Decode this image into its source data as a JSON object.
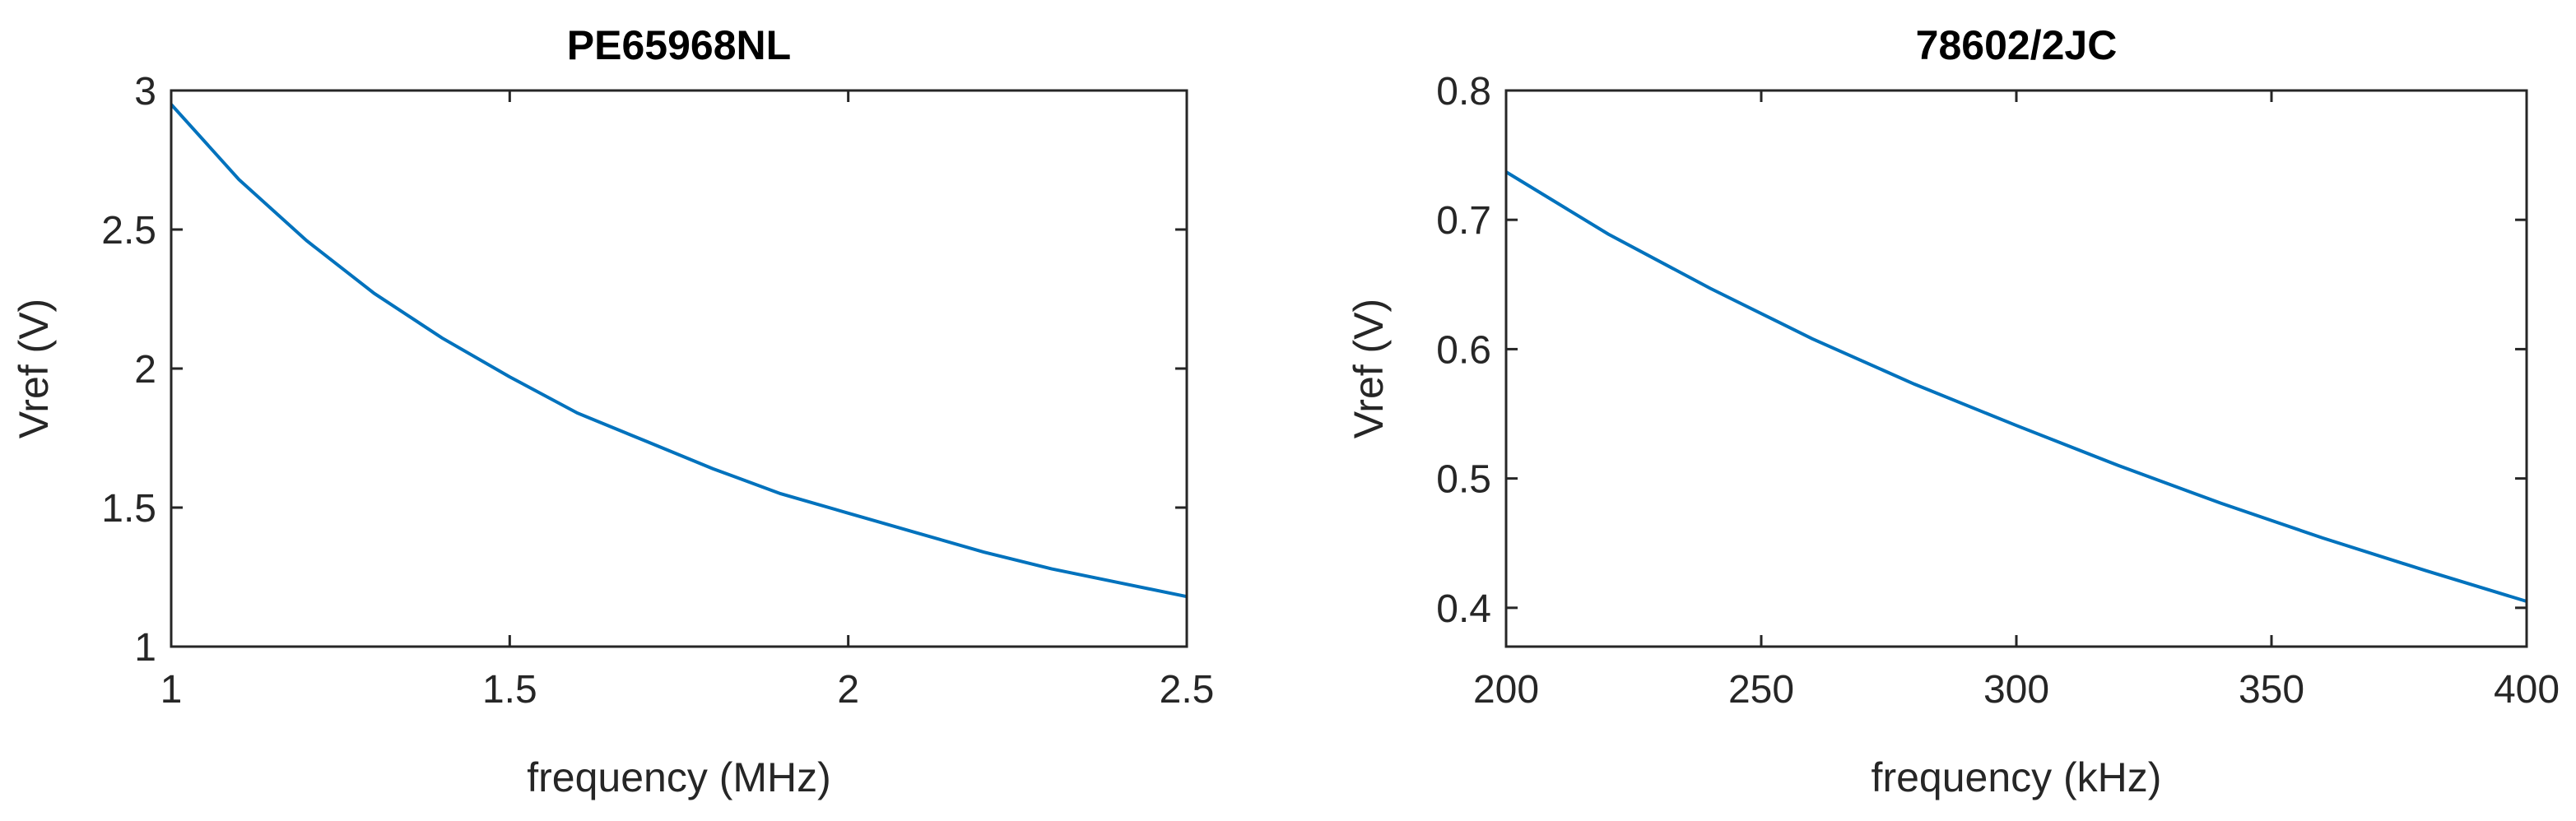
{
  "chart_data": [
    {
      "type": "line",
      "title": "PE65968NL",
      "xlabel": "frequency (MHz)",
      "ylabel": "Vref (V)",
      "xlim": [
        1,
        2.5
      ],
      "ylim": [
        1,
        3
      ],
      "xticks": [
        1,
        1.5,
        2,
        2.5
      ],
      "yticks": [
        1,
        1.5,
        2,
        2.5,
        3
      ],
      "xtick_labels": [
        "1",
        "1.5",
        "2",
        "2.5"
      ],
      "ytick_labels": [
        "1",
        "1.5",
        "2",
        "2.5",
        "3"
      ],
      "grid": false,
      "series": [
        {
          "color": "#0072BD",
          "x": [
            1.0,
            1.1,
            1.2,
            1.3,
            1.4,
            1.5,
            1.6,
            1.7,
            1.8,
            1.9,
            2.0,
            2.1,
            2.2,
            2.3,
            2.4,
            2.5
          ],
          "y": [
            2.95,
            2.68,
            2.46,
            2.27,
            2.11,
            1.97,
            1.84,
            1.74,
            1.64,
            1.55,
            1.48,
            1.41,
            1.34,
            1.28,
            1.23,
            1.18
          ]
        }
      ]
    },
    {
      "type": "line",
      "title": "78602/2JC",
      "xlabel": "frequency (kHz)",
      "ylabel": "Vref (V)",
      "xlim": [
        200,
        400
      ],
      "ylim": [
        0.37,
        0.8
      ],
      "xticks": [
        200,
        250,
        300,
        350,
        400
      ],
      "yticks": [
        0.4,
        0.5,
        0.6,
        0.7,
        0.8
      ],
      "xtick_labels": [
        "200",
        "250",
        "300",
        "350",
        "400"
      ],
      "ytick_labels": [
        "0.4",
        "0.5",
        "0.6",
        "0.7",
        "0.8"
      ],
      "grid": false,
      "series": [
        {
          "color": "#0072BD",
          "x": [
            200,
            220,
            240,
            260,
            280,
            300,
            320,
            340,
            360,
            380,
            400
          ],
          "y": [
            0.737,
            0.689,
            0.647,
            0.608,
            0.573,
            0.541,
            0.51,
            0.481,
            0.454,
            0.429,
            0.405
          ]
        }
      ]
    }
  ]
}
